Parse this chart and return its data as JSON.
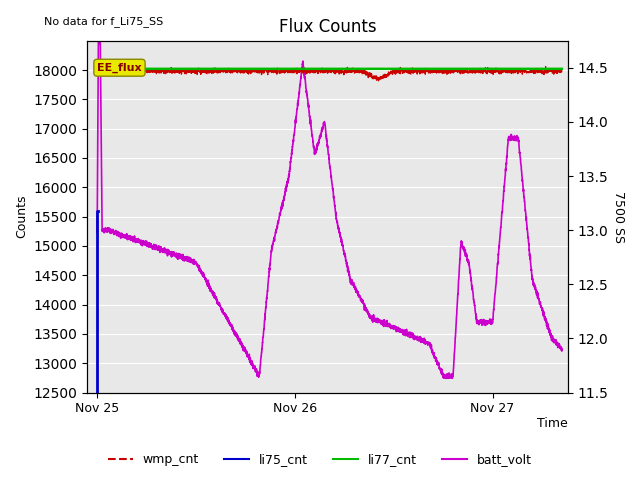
{
  "title": "Flux Counts",
  "top_left_text": "No data for f_Li75_SS",
  "xlabel": "Time",
  "ylabel_left": "Counts",
  "ylabel_right": "7500 SS",
  "annotation_text": "EE_flux",
  "ylim_left": [
    12500,
    18500
  ],
  "ylim_right": [
    11.5,
    14.75
  ],
  "bg_color": "#e8e8e8",
  "fig_bg_color": "#ffffff",
  "grid_color": "#ffffff",
  "wmp_cnt_color": "#cc0000",
  "li75_cnt_color": "#0000cc",
  "li77_cnt_color": "#00bb00",
  "batt_volt_color": "#cc00cc",
  "annotation_box_facecolor": "#e8e800",
  "annotation_box_edgecolor": "#888800",
  "annotation_text_color": "#880000",
  "x_tick_labels": [
    "Nov 25",
    "Nov 26",
    "Nov 27"
  ],
  "x_tick_positions": [
    0.0,
    1.0,
    2.0
  ],
  "legend_labels": [
    "wmp_cnt",
    "li75_cnt",
    "li77_cnt",
    "batt_volt"
  ],
  "xlim": [
    -0.05,
    2.38
  ]
}
